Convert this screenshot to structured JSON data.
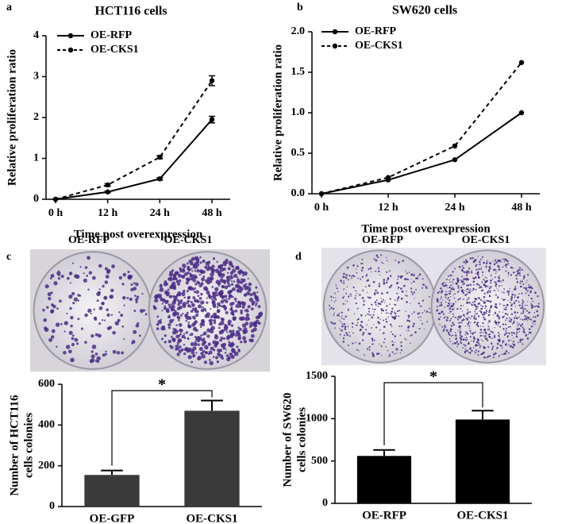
{
  "chart_data": [
    {
      "type": "line",
      "panel_label": "a",
      "title": "HCT116 cells",
      "categories": [
        "0 h",
        "12 h",
        "24 h",
        "48 h"
      ],
      "series": [
        {
          "name": "OE-RFP",
          "color": "#000000",
          "dashed": false,
          "values": [
            0,
            0.18,
            0.5,
            1.95
          ],
          "errors": [
            0,
            0.02,
            0.03,
            0.08
          ]
        },
        {
          "name": "OE-CKS1",
          "color": "#000000",
          "dashed": true,
          "values": [
            0,
            0.35,
            1.03,
            2.9
          ],
          "errors": [
            0,
            0.03,
            0.04,
            0.12
          ]
        }
      ],
      "ylim": [
        0,
        4
      ],
      "yticks": [
        0,
        1,
        2,
        3,
        4
      ],
      "ylabel": "Relative proliferation ratio",
      "xlabel": "Time post overexpression",
      "legend": "upper left"
    },
    {
      "type": "line",
      "panel_label": "b",
      "title": "SW620 cells",
      "categories": [
        "0 h",
        "12 h",
        "24 h",
        "48 h"
      ],
      "series": [
        {
          "name": "OE-RFP",
          "color": "#000000",
          "dashed": false,
          "values": [
            0,
            0.17,
            0.42,
            1.0
          ]
        },
        {
          "name": "OE-CKS1",
          "color": "#000000",
          "dashed": true,
          "values": [
            0,
            0.2,
            0.59,
            1.62
          ]
        }
      ],
      "ylim": [
        0,
        2
      ],
      "yticks": [
        {
          "value": 0,
          "label": "0.0"
        },
        0.5,
        {
          "value": 1,
          "label": "1.0"
        },
        1.5,
        {
          "value": 2,
          "label": "2.0"
        }
      ],
      "ylabel": "Relative proliferation ratio",
      "xlabel": "Time post overexpression",
      "legend": "upper left"
    },
    {
      "type": "bar",
      "panel_label": "c",
      "photo_labels": [
        "OE-RFP",
        "OE-CKS1"
      ],
      "categories": [
        "OE-GFP",
        "OE-CKS1"
      ],
      "values": [
        155,
        470
      ],
      "errors": [
        22,
        50
      ],
      "color": "#3a3a3a",
      "ylim": [
        0,
        600
      ],
      "yticks": [
        0,
        200,
        400,
        600
      ],
      "ylabel": [
        "Number of HCT116",
        "cells colonies"
      ],
      "significance": "*"
    },
    {
      "type": "bar",
      "panel_label": "d",
      "photo_labels": [
        "OE-RFP",
        "OE-CKS1"
      ],
      "categories": [
        "OE-RFP",
        "OE-CKS1"
      ],
      "values": [
        560,
        990
      ],
      "errors": [
        70,
        105
      ],
      "color": "#000000",
      "ylim": [
        0,
        1500
      ],
      "yticks": [
        0,
        500,
        1000,
        1500
      ],
      "ylabel": [
        "Number of SW620",
        "cells colonies"
      ],
      "significance": "*"
    }
  ]
}
